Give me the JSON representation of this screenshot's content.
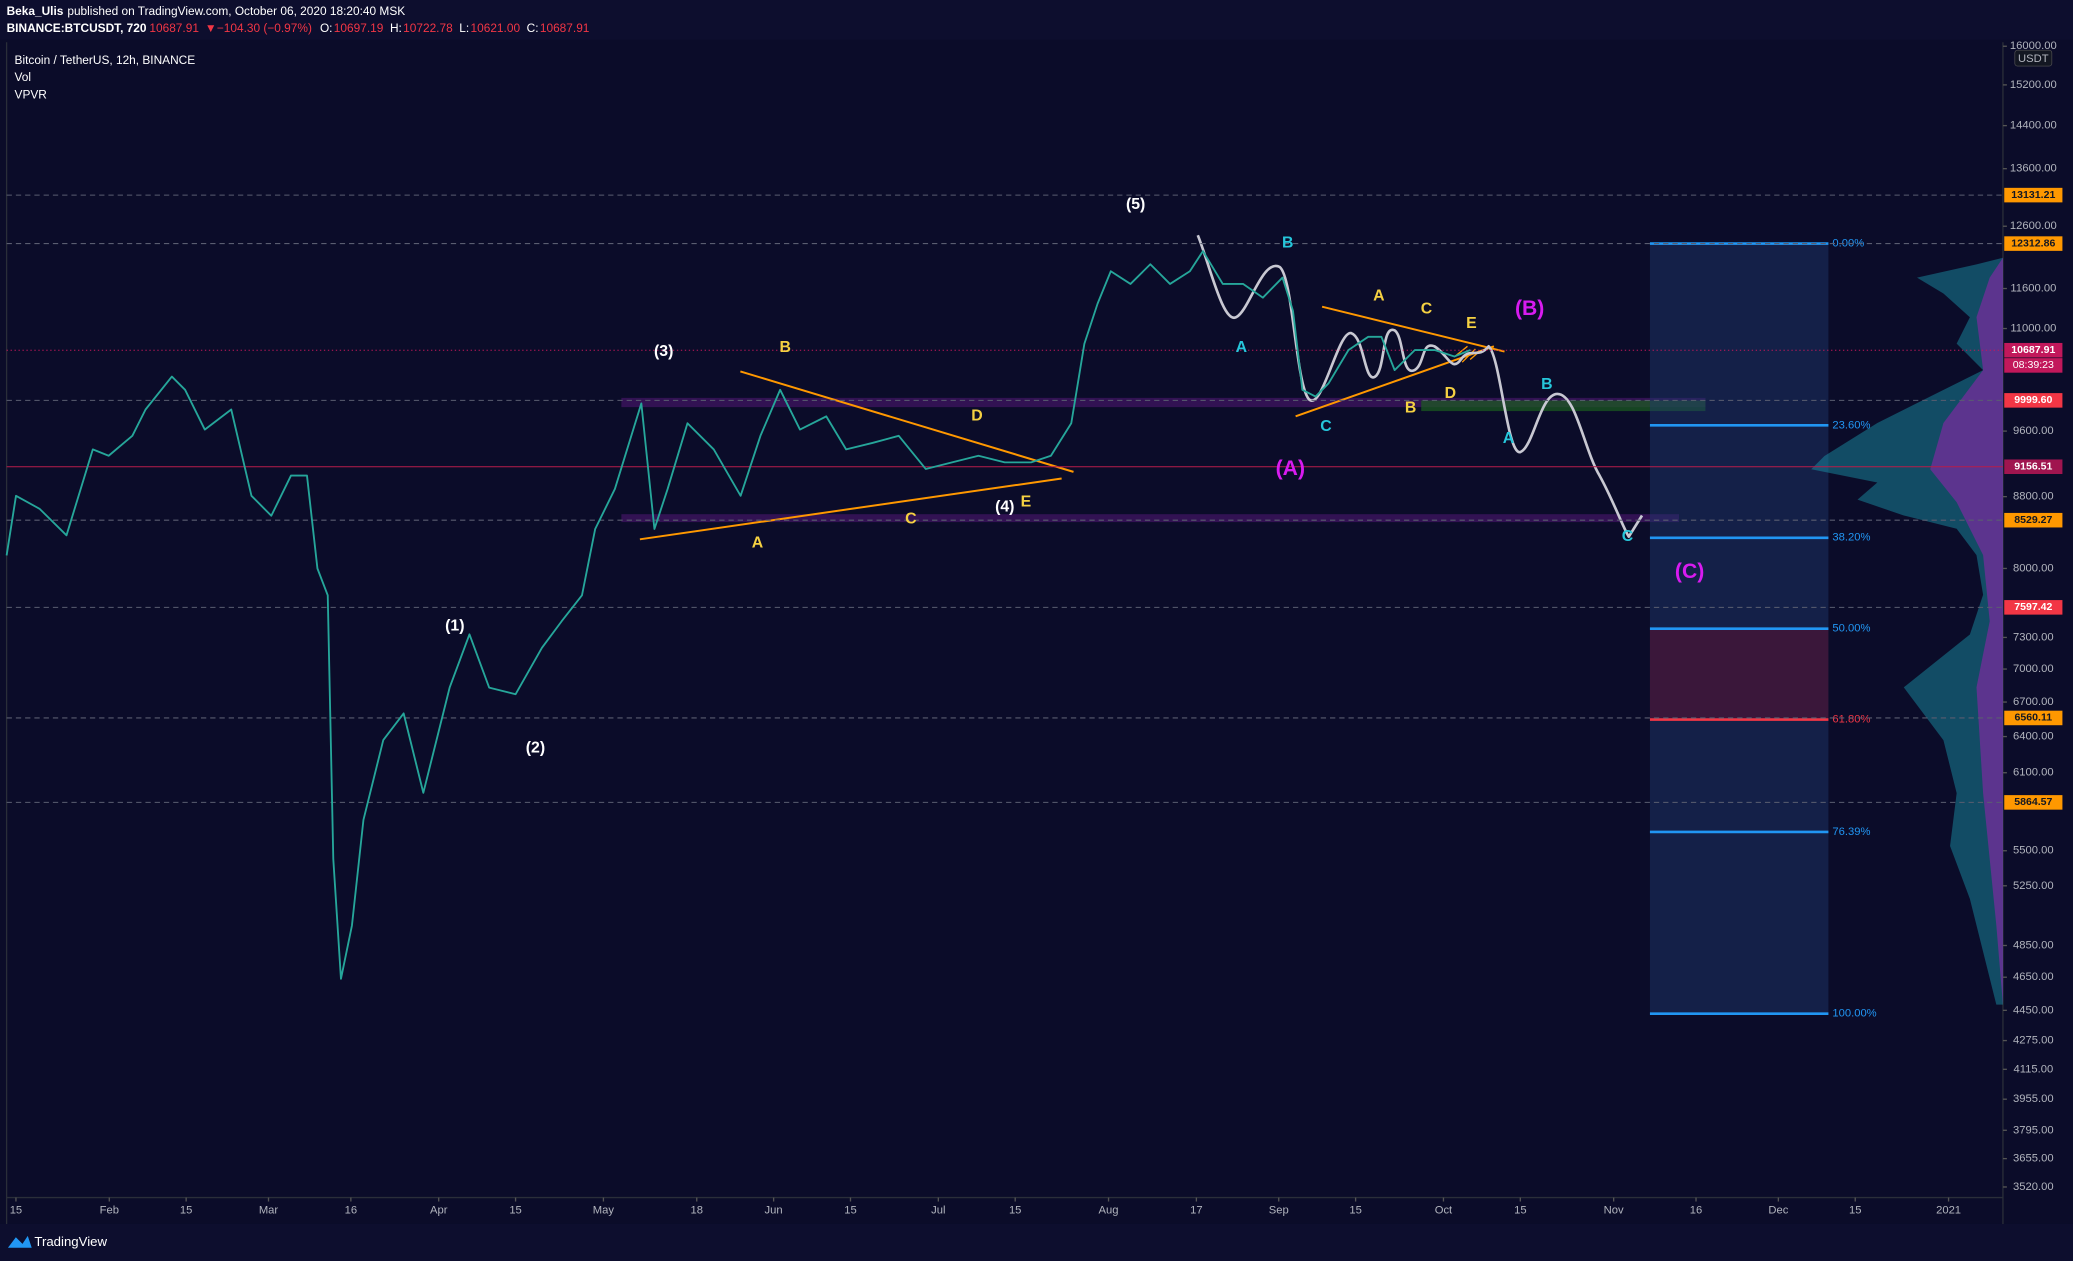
{
  "header": {
    "author": "Beka_Ulis",
    "published": "published on TradingView.com, October 06, 2020 18:20:40 MSK",
    "symbol": "BINANCE:BTCUSDT, 720",
    "last": "10687.91",
    "change": "−104.30 (−0.97%)",
    "ohlc": [
      {
        "label": "O:",
        "value": "10697.19"
      },
      {
        "label": "H:",
        "value": "10722.78"
      },
      {
        "label": "L:",
        "value": "10621.00"
      },
      {
        "label": "C:",
        "value": "10687.91"
      }
    ]
  },
  "footer": {
    "brand": "TradingView"
  },
  "chart_data": {
    "type": "line",
    "yscale": "log",
    "grid": false,
    "currency": "USDT",
    "indicators": [
      "Vol",
      "VPVR"
    ],
    "xlim": [
      13.3,
      376.9
    ],
    "ylim": [
      3477,
      16084
    ],
    "xticks": [
      15,
      {
        "value": 32,
        "label": "Feb"
      },
      {
        "value": 46,
        "label": "15"
      },
      {
        "value": 61,
        "label": "Mar"
      },
      {
        "value": 76,
        "label": "16"
      },
      {
        "value": 92,
        "label": "Apr"
      },
      {
        "value": 106,
        "label": "15"
      },
      {
        "value": 122,
        "label": "May"
      },
      {
        "value": 139,
        "label": "18"
      },
      {
        "value": 153,
        "label": "Jun"
      },
      {
        "value": 167,
        "label": "15"
      },
      {
        "value": 183,
        "label": "Jul"
      },
      {
        "value": 197,
        "label": "15"
      },
      {
        "value": 214,
        "label": "Aug"
      },
      {
        "value": 230,
        "label": "17"
      },
      {
        "value": 245,
        "label": "Sep"
      },
      {
        "value": 259,
        "label": "15"
      },
      {
        "value": 275,
        "label": "Oct"
      },
      {
        "value": 289,
        "label": "15"
      },
      {
        "value": 306,
        "label": "Nov"
      },
      {
        "value": 321,
        "label": "16"
      },
      {
        "value": 336,
        "label": "Dec"
      },
      {
        "value": 350,
        "label": "15"
      },
      {
        "value": 367,
        "label": "2021"
      }
    ],
    "yticks": [
      {
        "value": 16000,
        "label": "16000.00"
      },
      {
        "value": 15200,
        "label": "15200.00"
      },
      {
        "value": 14400,
        "label": "14400.00"
      },
      {
        "value": 13600,
        "label": "13600.00"
      },
      {
        "value": 12600,
        "label": "12600.00"
      },
      {
        "value": 11600,
        "label": "11600.00"
      },
      {
        "value": 11000,
        "label": "11000.00"
      },
      {
        "value": 9600,
        "label": "9600.00"
      },
      {
        "value": 8800,
        "label": "8800.00"
      },
      {
        "value": 8000,
        "label": "8000.00"
      },
      {
        "value": 7300,
        "label": "7300.00"
      },
      {
        "value": 7000,
        "label": "7000.00"
      },
      {
        "value": 6700,
        "label": "6700.00"
      },
      {
        "value": 6400,
        "label": "6400.00"
      },
      {
        "value": 6100,
        "label": "6100.00"
      },
      {
        "value": 5500,
        "label": "5500.00"
      },
      {
        "value": 5250,
        "label": "5250.00"
      },
      {
        "value": 4850,
        "label": "4850.00"
      },
      {
        "value": 4650,
        "label": "4650.00"
      },
      {
        "value": 4450,
        "label": "4450.00"
      },
      {
        "value": 4275,
        "label": "4275.00"
      },
      {
        "value": 4115,
        "label": "4115.00"
      },
      {
        "value": 3955,
        "label": "3955.00"
      },
      {
        "value": 3795,
        "label": "3795.00"
      },
      {
        "value": 3655,
        "label": "3655.00"
      },
      {
        "value": 3520,
        "label": "3520.00"
      }
    ],
    "x": [
      13.3,
      15,
      19.3,
      24.2,
      29,
      31.9,
      36.2,
      38.6,
      43.4,
      45.8,
      49.4,
      54.2,
      57.9,
      61.5,
      65.1,
      68,
      69.9,
      71.8,
      72.8,
      74.2,
      76.2,
      78.3,
      81.9,
      85.6,
      89.2,
      94,
      97.6,
      101.2,
      106,
      110.8,
      114.4,
      118.1,
      120.5,
      124.1,
      128.9,
      131.3,
      133.7,
      137.3,
      142.1,
      147,
      150.6,
      154.2,
      157.8,
      162.6,
      166.2,
      171,
      175.8,
      180.7,
      185.5,
      190.3,
      195.1,
      199.9,
      203.5,
      207.2,
      209.6,
      212,
      214.4,
      218,
      221.6,
      225.2,
      228.8,
      231.2,
      234.8,
      238.5,
      242.1,
      245.7,
      247.6,
      249.3,
      251.7,
      254.1,
      257.7,
      261.3,
      263.7,
      266.1,
      269.8,
      273.4,
      277,
      279.9
    ],
    "series": [
      {
        "name": "Bitcoin / TetherUS, 12h, BINANCE",
        "color": "#26a69a",
        "values": [
          8140,
          8810,
          8660,
          8360,
          9370,
          9290,
          9540,
          9880,
          10320,
          10140,
          9620,
          9880,
          8810,
          8580,
          9050,
          9050,
          8000,
          7720,
          5440,
          4640,
          4980,
          5730,
          6370,
          6600,
          5940,
          6830,
          7330,
          6830,
          6770,
          7200,
          7460,
          7720,
          8430,
          8890,
          9960,
          8430,
          8890,
          9700,
          9370,
          8810,
          9540,
          10140,
          9620,
          9790,
          9370,
          9450,
          9540,
          9130,
          9210,
          9290,
          9210,
          9210,
          9290,
          9700,
          10780,
          11370,
          11870,
          11670,
          11980,
          11670,
          11870,
          12190,
          11670,
          11670,
          11460,
          11770,
          11260,
          10140,
          10050,
          10230,
          10690,
          10880,
          10880,
          10410,
          10690,
          10690,
          10600,
          10690
        ]
      }
    ],
    "price_tags": [
      {
        "value": 13131.21,
        "label": "13131.21",
        "color": "#ff9800",
        "line": "dashed"
      },
      {
        "value": 12312.86,
        "label": "12312.86",
        "color": "#ff9800",
        "line": "dashed"
      },
      {
        "value": 10687.91,
        "label": "10687.91",
        "color": "#c2185b",
        "line": "dotted"
      },
      {
        "value": 9999.6,
        "label": "9999.60",
        "color": "#f23645",
        "line": "dashed"
      },
      {
        "value": 9156.51,
        "label": "9156.51",
        "color": "#a0154f",
        "line": "solid"
      },
      {
        "value": 8529.27,
        "label": "8529.27",
        "color": "#ff9800",
        "line": "dashed"
      },
      {
        "value": 7597.42,
        "label": "7597.42",
        "color": "#f23645",
        "line": "dashed"
      },
      {
        "value": 6560.11,
        "label": "6560.11",
        "color": "#ff9800",
        "line": "dashed"
      },
      {
        "value": 5864.57,
        "label": "5864.57",
        "color": "#ff9800",
        "line": "dashed"
      }
    ],
    "countdown": "08:39:23",
    "fib": {
      "high": 12312.86,
      "low": 4430,
      "levels": [
        {
          "value": 0,
          "label": "0.00%"
        },
        {
          "value": 23.6,
          "label": "23.60%"
        },
        {
          "value": 38.2,
          "label": "38.20%"
        },
        {
          "value": 50,
          "label": "50.00%"
        },
        {
          "value": 61.8,
          "label": "61.80%"
        },
        {
          "value": 76.39,
          "label": "76.39%"
        },
        {
          "value": 100,
          "label": "100.00%"
        }
      ]
    },
    "annotations": [
      {
        "text": "(5)",
        "color": "#ffffff"
      },
      {
        "text": "(3)",
        "color": "#ffffff"
      },
      {
        "text": "(1)",
        "color": "#ffffff"
      },
      {
        "text": "(2)",
        "color": "#ffffff"
      },
      {
        "text": "(4)",
        "color": "#ffffff"
      },
      {
        "text": "A",
        "color": "#f5d142"
      },
      {
        "text": "B",
        "color": "#f5d142"
      },
      {
        "text": "C",
        "color": "#f5d142"
      },
      {
        "text": "D",
        "color": "#f5d142"
      },
      {
        "text": "E",
        "color": "#f5d142"
      },
      {
        "text": "A",
        "color": "#26c6da"
      },
      {
        "text": "B",
        "color": "#26c6da"
      },
      {
        "text": "C",
        "color": "#26c6da"
      },
      {
        "text": "A",
        "color": "#f5d142"
      },
      {
        "text": "C",
        "color": "#f5d142"
      },
      {
        "text": "E",
        "color": "#f5d142"
      },
      {
        "text": "B",
        "color": "#f5d142"
      },
      {
        "text": "D",
        "color": "#f5d142"
      },
      {
        "text": "(B)",
        "color": "#d81bf0"
      },
      {
        "text": "(A)",
        "color": "#d81bf0"
      },
      {
        "text": "(C)",
        "color": "#d81bf0"
      },
      {
        "text": "B",
        "color": "#26c6da"
      },
      {
        "text": "A",
        "color": "#26c6da"
      },
      {
        "text": "C",
        "color": "#26c6da"
      }
    ]
  }
}
